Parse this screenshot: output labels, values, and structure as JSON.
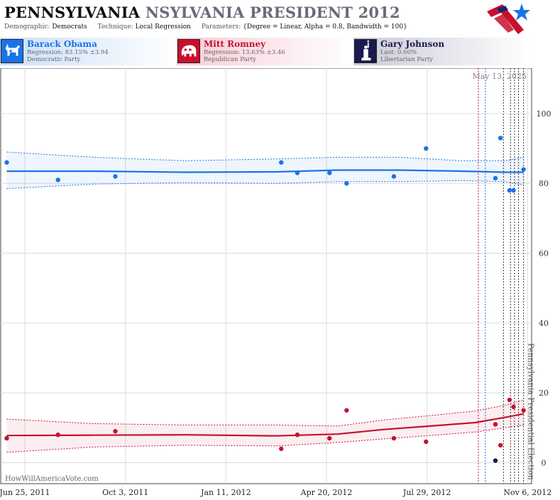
{
  "header": {
    "title_main": "PENNSYLVANIA",
    "title_sub": "NSYLVANIA PRESIDENT 2012",
    "demographic_label": "Demographic:",
    "demographic_value": "Democrats",
    "technique_label": "Technique:",
    "technique_value": "Local Regression",
    "parameters_label": "Parameters:",
    "parameters_value": "{Degree = Linear, Alpha = 0.8, Bandwidth = 100}"
  },
  "logo": {
    "icon": "hwav-star-logo-icon",
    "colors": [
      "#c8102e",
      "#1a73e8",
      "#0b2a6b"
    ]
  },
  "candidates": [
    {
      "name": "Barack Obama",
      "stat": "Regression: 83.15% ±3.94",
      "party": "Democratic Party",
      "color": "#1a73e8",
      "icon": "donkey-icon"
    },
    {
      "name": "Mitt Romney",
      "stat": "Regression: 13.63% ±3.46",
      "party": "Republican Party",
      "color": "#c8102e",
      "icon": "elephant-icon"
    },
    {
      "name": "Gary Johnson",
      "stat": "Last: 0.60%",
      "party": "Libertarian Party",
      "color": "#1a1a4e",
      "icon": "statue-of-liberty-icon"
    }
  ],
  "chart_data": {
    "type": "scatter",
    "date_label": "May 13, 2025",
    "event_label": "Pennsylvania Presidential Election",
    "watermark": "HowWillAmericaVote.com",
    "x_ticks": [
      "Jun 25, 2011",
      "Oct 3, 2011",
      "Jan 11, 2012",
      "Apr 20, 2012",
      "Jul 29, 2012",
      "Nov 6, 2012"
    ],
    "x_range": [
      "2011-06-01",
      "2012-11-10"
    ],
    "y_ticks": [
      0,
      20,
      40,
      60,
      80,
      100
    ],
    "ylim": [
      -6,
      113
    ],
    "grid": true,
    "poll_dates": [
      "2012-09-18",
      "2012-09-25",
      "2012-10-13",
      "2012-10-20",
      "2012-10-24",
      "2012-10-28",
      "2012-11-02"
    ],
    "series": [
      {
        "name": "Barack Obama",
        "color": "#1a73e8",
        "points": [
          [
            "2011-06-07",
            86
          ],
          [
            "2011-07-28",
            81
          ],
          [
            "2011-09-23",
            82
          ],
          [
            "2012-03-06",
            86
          ],
          [
            "2012-03-22",
            83
          ],
          [
            "2012-04-23",
            83
          ],
          [
            "2012-05-10",
            80
          ],
          [
            "2012-06-26",
            82
          ],
          [
            "2012-07-28",
            90
          ],
          [
            "2012-10-05",
            81.5
          ],
          [
            "2012-10-10",
            93
          ],
          [
            "2012-10-19",
            78
          ],
          [
            "2012-10-23",
            78
          ],
          [
            "2012-11-02",
            84
          ]
        ],
        "trend": [
          [
            "2011-06-07",
            83.5
          ],
          [
            "2011-09-01",
            83.5
          ],
          [
            "2011-12-01",
            83.2
          ],
          [
            "2012-03-01",
            83.3
          ],
          [
            "2012-05-01",
            83.8
          ],
          [
            "2012-07-01",
            83.8
          ],
          [
            "2012-09-01",
            83.5
          ],
          [
            "2012-10-15",
            83.2
          ],
          [
            "2012-11-02",
            83.2
          ]
        ],
        "band_upper": [
          [
            "2011-06-07",
            89
          ],
          [
            "2011-09-01",
            87.5
          ],
          [
            "2011-12-01",
            86.5
          ],
          [
            "2012-03-01",
            87
          ],
          [
            "2012-05-01",
            87.5
          ],
          [
            "2012-07-01",
            87.5
          ],
          [
            "2012-09-01",
            86.5
          ],
          [
            "2012-10-15",
            86.5
          ],
          [
            "2012-11-02",
            87.5
          ]
        ],
        "band_lower": [
          [
            "2011-06-07",
            78.5
          ],
          [
            "2011-09-01",
            79.8
          ],
          [
            "2011-12-01",
            80.2
          ],
          [
            "2012-03-01",
            80
          ],
          [
            "2012-05-01",
            80.5
          ],
          [
            "2012-07-01",
            80.5
          ],
          [
            "2012-09-01",
            80.8
          ],
          [
            "2012-10-15",
            80.5
          ],
          [
            "2012-11-02",
            79.5
          ]
        ]
      },
      {
        "name": "Mitt Romney",
        "color": "#c8102e",
        "points": [
          [
            "2011-06-07",
            7
          ],
          [
            "2011-07-28",
            8
          ],
          [
            "2011-09-23",
            9
          ],
          [
            "2012-03-06",
            4
          ],
          [
            "2012-03-22",
            8
          ],
          [
            "2012-04-23",
            7
          ],
          [
            "2012-05-10",
            15
          ],
          [
            "2012-06-26",
            7
          ],
          [
            "2012-07-28",
            6
          ],
          [
            "2012-10-05",
            11
          ],
          [
            "2012-10-10",
            5
          ],
          [
            "2012-10-19",
            18
          ],
          [
            "2012-10-23",
            16
          ],
          [
            "2012-11-02",
            15
          ]
        ],
        "trend": [
          [
            "2011-06-07",
            7.8
          ],
          [
            "2011-09-01",
            7.9
          ],
          [
            "2011-12-01",
            8
          ],
          [
            "2012-03-01",
            7.7
          ],
          [
            "2012-05-01",
            8.2
          ],
          [
            "2012-06-15",
            9.5
          ],
          [
            "2012-08-01",
            10.5
          ],
          [
            "2012-09-15",
            11.5
          ],
          [
            "2012-10-15",
            13
          ],
          [
            "2012-11-02",
            14
          ]
        ],
        "band_upper": [
          [
            "2011-06-07",
            12.5
          ],
          [
            "2011-09-01",
            11.2
          ],
          [
            "2011-12-01",
            10.8
          ],
          [
            "2012-03-01",
            10.8
          ],
          [
            "2012-05-01",
            10.5
          ],
          [
            "2012-06-15",
            12.2
          ],
          [
            "2012-08-01",
            13.5
          ],
          [
            "2012-09-15",
            14.8
          ],
          [
            "2012-10-15",
            16.5
          ],
          [
            "2012-11-02",
            18
          ]
        ],
        "band_lower": [
          [
            "2011-06-07",
            3
          ],
          [
            "2011-09-01",
            4.5
          ],
          [
            "2011-12-01",
            5
          ],
          [
            "2012-03-01",
            4.8
          ],
          [
            "2012-05-01",
            5.8
          ],
          [
            "2012-06-15",
            6.8
          ],
          [
            "2012-08-01",
            7.8
          ],
          [
            "2012-09-15",
            8.8
          ],
          [
            "2012-10-15",
            10
          ],
          [
            "2012-11-02",
            10.8
          ]
        ]
      },
      {
        "name": "Gary Johnson",
        "color": "#1a1a4e",
        "points": [
          [
            "2012-10-05",
            0.6
          ]
        ]
      }
    ]
  }
}
